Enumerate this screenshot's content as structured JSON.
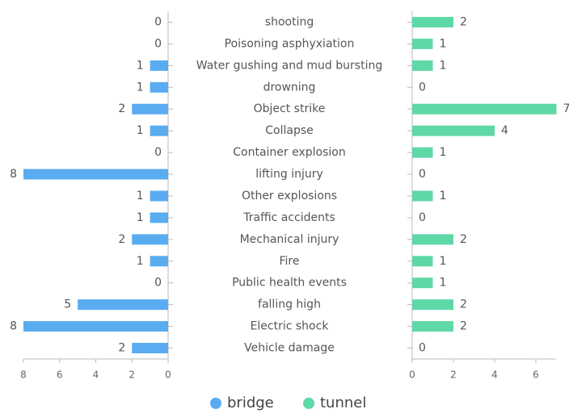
{
  "chart_data": {
    "type": "butterfly",
    "categories": [
      "shooting",
      "Poisoning asphyxiation",
      "Water gushing and mud bursting",
      "drowning",
      "Object strike",
      "Collapse",
      "Container explosion",
      "lifting injury",
      "Other explosions",
      "Traffic accidents",
      "Mechanical injury",
      "Fire",
      "Public health events",
      "falling high",
      "Electric shock",
      "Vehicle damage"
    ],
    "series": [
      {
        "name": "bridge",
        "color": "#5aacf0",
        "values": [
          0,
          0,
          1,
          1,
          2,
          1,
          0,
          8,
          1,
          1,
          2,
          1,
          0,
          5,
          8,
          2
        ],
        "xlim": [
          0,
          8
        ],
        "xticks": [
          8,
          6,
          4,
          2,
          0
        ],
        "reversed": true
      },
      {
        "name": "tunnel",
        "color": "#5ed8a6",
        "values": [
          2,
          1,
          1,
          0,
          7,
          4,
          1,
          0,
          1,
          0,
          2,
          1,
          1,
          2,
          2,
          0
        ],
        "xlim": [
          0,
          7
        ],
        "xticks": [
          0,
          2,
          4,
          6
        ],
        "reversed": false
      }
    ],
    "legend": "bottom"
  }
}
